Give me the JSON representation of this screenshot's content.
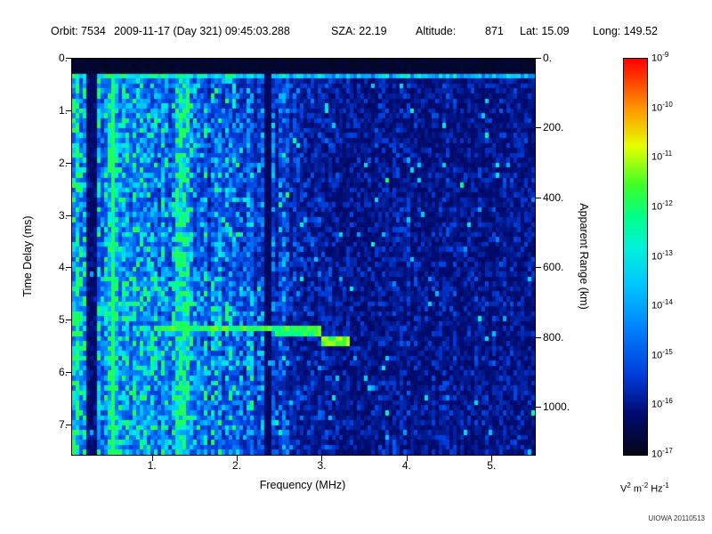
{
  "header": {
    "orbit": {
      "label": "Orbit:",
      "value": "7534"
    },
    "datetime": "2009-11-17 (Day 321) 09:45:03.288",
    "sza": {
      "label": "SZA:",
      "value": "22.19"
    },
    "altitude": {
      "label": "Altitude:",
      "value": "871"
    },
    "lat": {
      "label": "Lat:",
      "value": "15.09"
    },
    "long": {
      "label": "Long:",
      "value": "149.52"
    }
  },
  "watermark": "UIOWA 20110513",
  "chart_data": {
    "type": "heatmap",
    "title": "",
    "x_axis": {
      "label": "Frequency (MHz)",
      "range": [
        0.05,
        5.5
      ],
      "tick_values": [
        1,
        2,
        3,
        4,
        5
      ],
      "tick_labels": [
        "1.",
        "2.",
        "3.",
        "4.",
        "5."
      ]
    },
    "y_axis": {
      "label": "Time Delay (ms)",
      "range": [
        0,
        7.56
      ],
      "direction": "down",
      "tick_values": [
        0,
        1,
        2,
        3,
        4,
        5,
        6,
        7
      ],
      "tick_labels": [
        "0.",
        "1.",
        "2.",
        "3.",
        "4.",
        "5.",
        "6.",
        "7."
      ]
    },
    "y2_axis": {
      "label": "Apparent Range (km)",
      "km_per_ms": 150,
      "tick_values": [
        0,
        200,
        400,
        600,
        800,
        1000
      ],
      "tick_labels": [
        "0.",
        "200.",
        "400.",
        "600.",
        "800.",
        "1000."
      ]
    },
    "z_axis": {
      "scale": "log10",
      "mantissa": "10",
      "exponent_ticks": [
        -9,
        -10,
        -11,
        -12,
        -13,
        -14,
        -15,
        -16,
        -17
      ],
      "unit_parts": [
        {
          "t": "V",
          "sup": "2"
        },
        {
          "t": " m",
          "sup": "-2"
        },
        {
          "t": " Hz",
          "sup": "-1"
        }
      ],
      "colormap": "rainbow"
    },
    "features": {
      "transmit_black_band_ms": [
        0,
        0.27
      ],
      "post_transmit_bright_band_ms": [
        0.27,
        0.42
      ],
      "vertical_bright_stripes_mhz": [
        0.1,
        0.5,
        0.57,
        1.33,
        1.42
      ],
      "vertical_dark_lines_mhz": [
        0.24,
        0.31,
        2.34,
        2.37
      ],
      "echo_trace_segments": [
        {
          "f0": 0.62,
          "f1": 1.0,
          "t_ms": 5.15,
          "intensity": 0.55,
          "halfwidth_ms": 0.06
        },
        {
          "f0": 1.0,
          "f1": 2.45,
          "t_ms": 5.15,
          "intensity": 0.9,
          "halfwidth_ms": 0.08
        },
        {
          "f0": 2.45,
          "f1": 3.0,
          "t_ms": 5.22,
          "intensity": 0.85,
          "halfwidth_ms": 0.08
        },
        {
          "f0": 3.0,
          "f1": 3.32,
          "t_ms": 5.4,
          "intensity": 0.95,
          "halfwidth_ms": 0.11
        }
      ],
      "noise": {
        "low_freq_base": 0.42,
        "high_freq_base": 0.13,
        "transition_mhz": [
          0.7,
          3.3
        ],
        "speckle_prob": 0.015,
        "lower_left_boost": 1.18
      }
    }
  }
}
